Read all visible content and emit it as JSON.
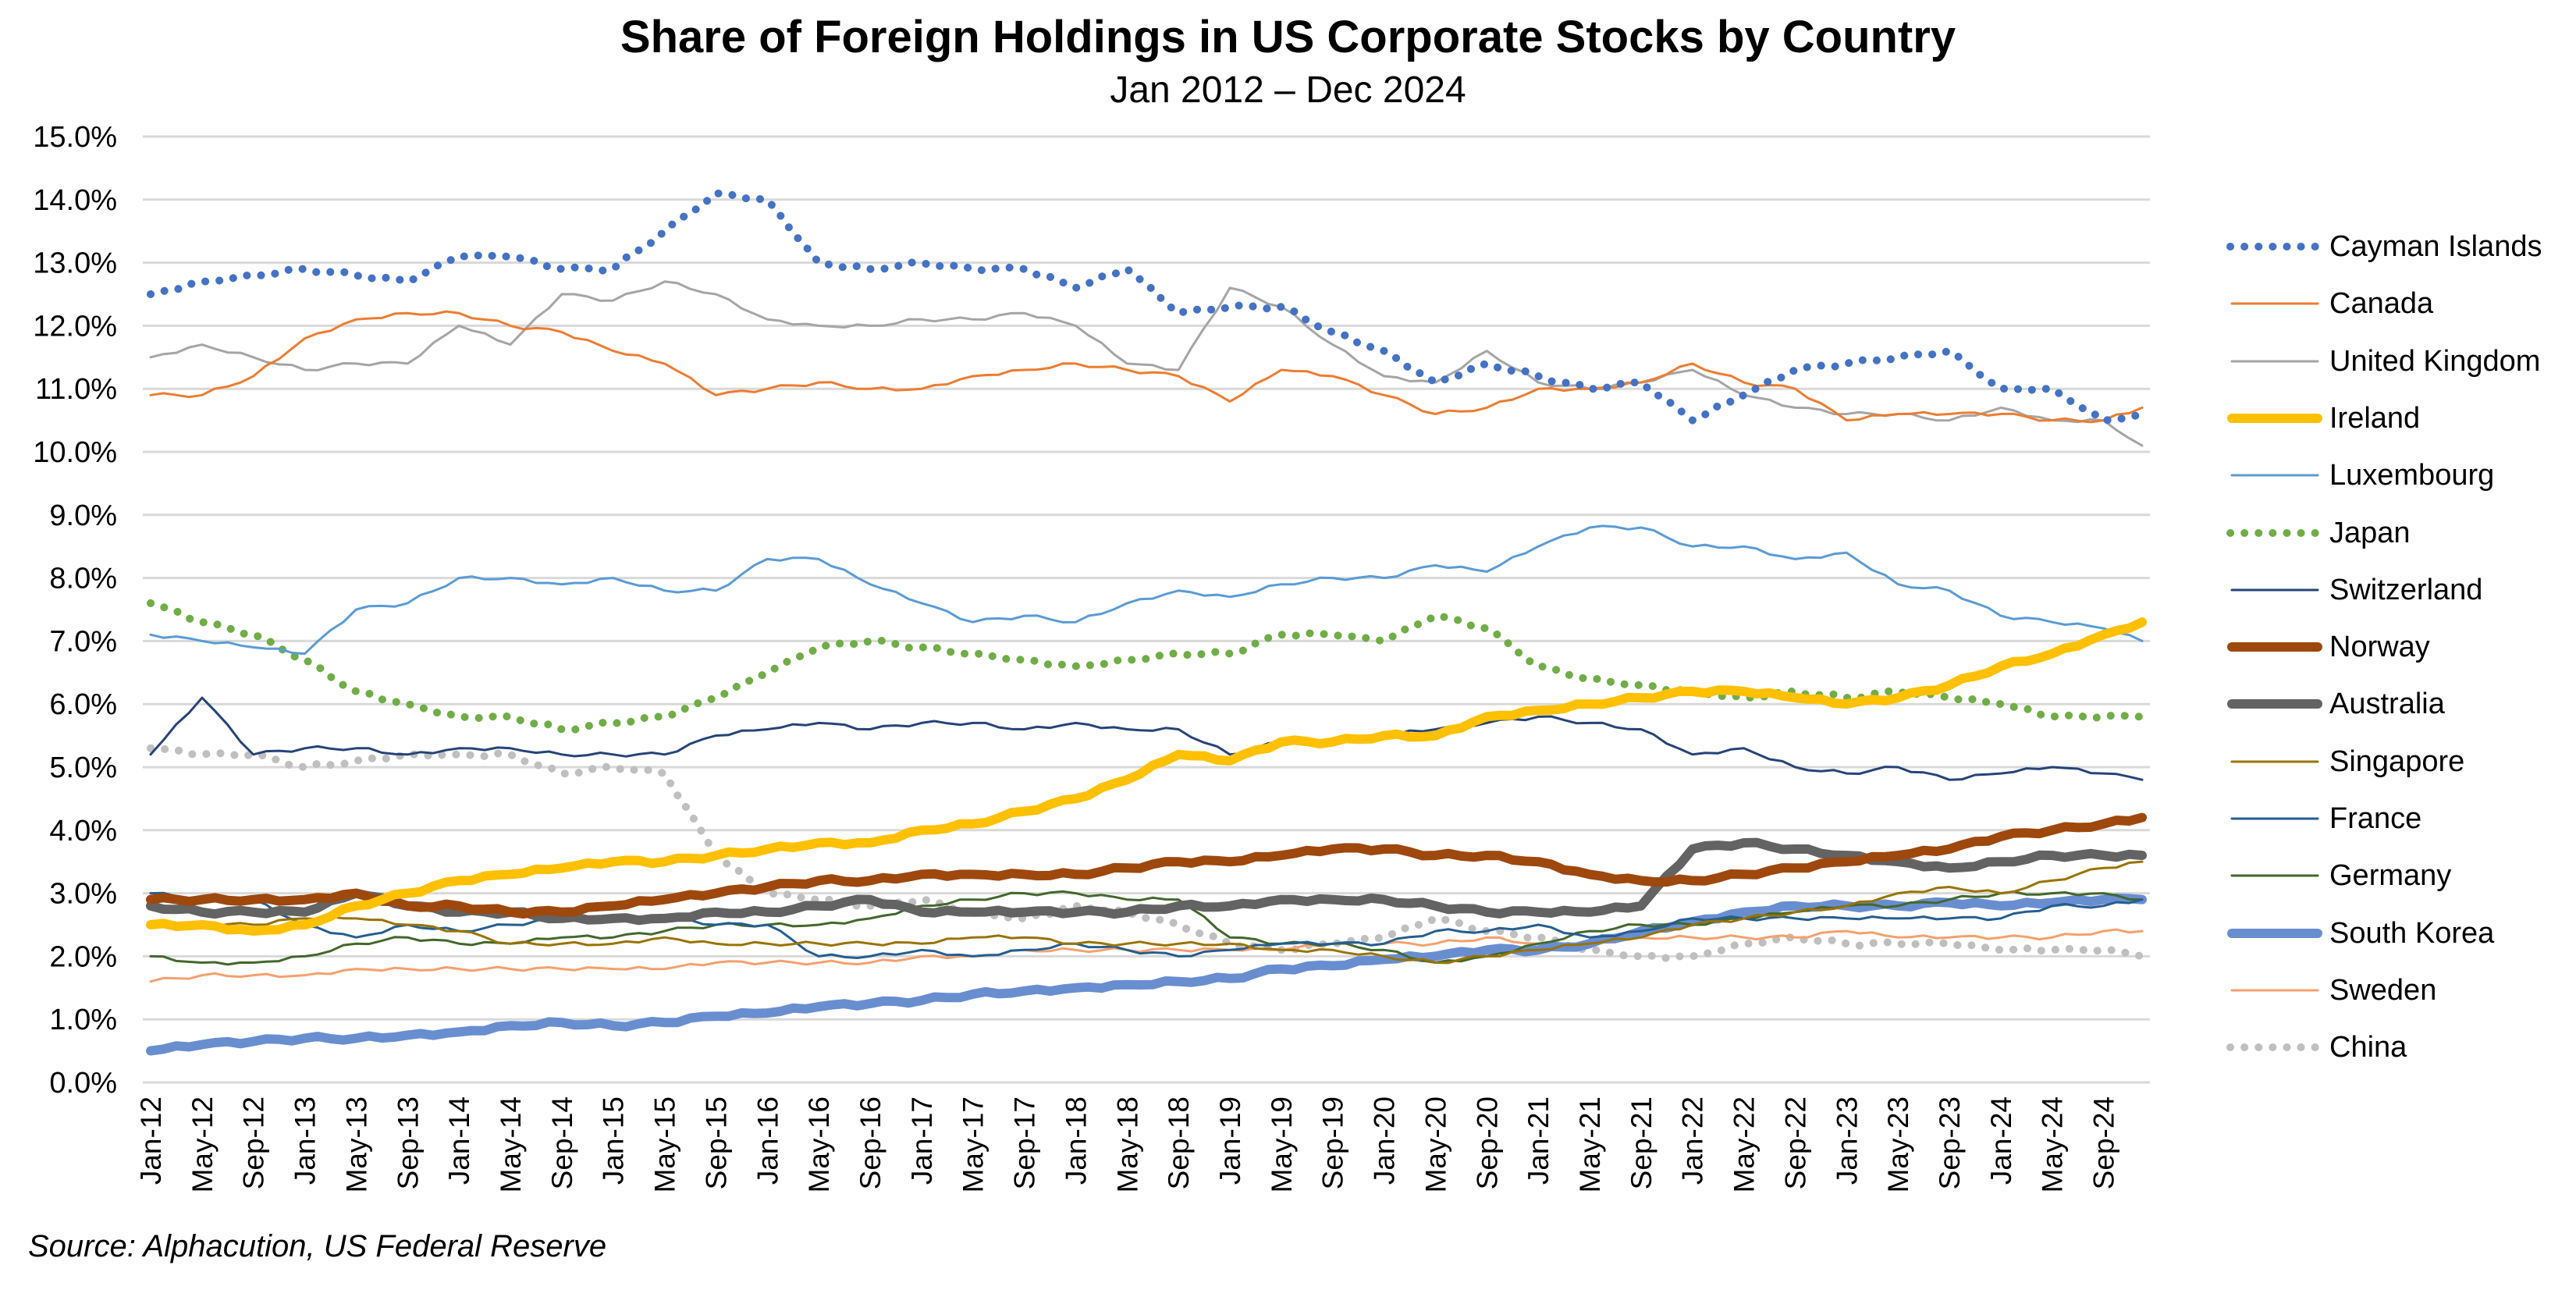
{
  "chart_data": {
    "type": "line",
    "title": "Share of Foreign Holdings in US Corporate Stocks by Country",
    "subtitle": "Jan 2012 – Dec 2024",
    "source": "Source: Alphacution, US Federal Reserve",
    "xlabel": "",
    "ylabel": "",
    "ylim": [
      0,
      15
    ],
    "yticks": [
      "0.0%",
      "1.0%",
      "2.0%",
      "3.0%",
      "4.0%",
      "5.0%",
      "6.0%",
      "7.0%",
      "8.0%",
      "9.0%",
      "10.0%",
      "11.0%",
      "12.0%",
      "13.0%",
      "14.0%",
      "15.0%"
    ],
    "grid": true,
    "legend_position": "right",
    "x": [
      "Jan-12",
      "May-12",
      "Sep-12",
      "Jan-13",
      "May-13",
      "Sep-13",
      "Jan-14",
      "May-14",
      "Sep-14",
      "Jan-15",
      "May-15",
      "Sep-15",
      "Jan-16",
      "May-16",
      "Sep-16",
      "Jan-17",
      "May-17",
      "Sep-17",
      "Jan-18",
      "May-18",
      "Sep-18",
      "Jan-19",
      "May-19",
      "Sep-19",
      "Jan-20",
      "May-20",
      "Sep-20",
      "Jan-21",
      "May-21",
      "Sep-21",
      "Jan-22",
      "May-22",
      "Sep-22",
      "Jan-23",
      "May-23",
      "Sep-23",
      "Jan-24",
      "May-24",
      "Sep-24",
      "Dec-24"
    ],
    "xticks": [
      "Jan-12",
      "May-12",
      "Sep-12",
      "Jan-13",
      "May-13",
      "Sep-13",
      "Jan-14",
      "May-14",
      "Sep-14",
      "Jan-15",
      "May-15",
      "Sep-15",
      "Jan-16",
      "May-16",
      "Sep-16",
      "Jan-17",
      "May-17",
      "Sep-17",
      "Jan-18",
      "May-18",
      "Sep-18",
      "Jan-19",
      "May-19",
      "Sep-19",
      "Jan-20",
      "May-20",
      "Sep-20",
      "Jan-21",
      "May-21",
      "Sep-21",
      "Jan-22",
      "May-22",
      "Sep-22",
      "Jan-23",
      "May-23",
      "Sep-23",
      "Jan-24",
      "May-24",
      "Sep-24"
    ],
    "series": [
      {
        "name": "Cayman Islands",
        "color": "#4472C4",
        "style": "dotted",
        "weight": "medium",
        "values": [
          12.5,
          12.7,
          12.8,
          12.9,
          12.8,
          12.7,
          13.1,
          13.1,
          12.9,
          12.9,
          13.5,
          14.1,
          14.0,
          13.0,
          12.9,
          13.0,
          12.9,
          12.9,
          12.6,
          12.9,
          12.2,
          12.3,
          12.3,
          11.9,
          11.6,
          11.1,
          11.4,
          11.2,
          11.0,
          11.1,
          10.5,
          10.9,
          11.3,
          11.4,
          11.5,
          11.6,
          11.0,
          11.0,
          10.5,
          10.6
        ]
      },
      {
        "name": "Canada",
        "color": "#ED7D31",
        "style": "solid",
        "weight": "thin",
        "values": [
          10.9,
          10.9,
          11.2,
          11.8,
          12.1,
          12.2,
          12.2,
          12.0,
          11.9,
          11.6,
          11.4,
          10.9,
          11.0,
          11.1,
          11.0,
          11.0,
          11.2,
          11.3,
          11.4,
          11.3,
          11.2,
          10.8,
          11.3,
          11.2,
          10.9,
          10.6,
          10.7,
          11.0,
          11.0,
          11.1,
          11.4,
          11.1,
          11.0,
          10.5,
          10.6,
          10.6,
          10.6,
          10.5,
          10.5,
          10.7
        ]
      },
      {
        "name": "United Kingdom",
        "color": "#A5A5A5",
        "style": "solid",
        "weight": "thin",
        "values": [
          11.5,
          11.7,
          11.5,
          11.3,
          11.4,
          11.4,
          12.0,
          11.7,
          12.5,
          12.4,
          12.7,
          12.5,
          12.1,
          12.0,
          12.0,
          12.1,
          12.1,
          12.2,
          12.0,
          11.4,
          11.3,
          12.6,
          12.3,
          11.7,
          11.2,
          11.1,
          11.6,
          11.1,
          11.0,
          11.1,
          11.3,
          10.9,
          10.7,
          10.6,
          10.6,
          10.5,
          10.7,
          10.5,
          10.5,
          10.1
        ]
      },
      {
        "name": "Ireland",
        "color": "#FFC000",
        "style": "solid",
        "weight": "thick",
        "values": [
          2.5,
          2.5,
          2.4,
          2.5,
          2.8,
          3.0,
          3.2,
          3.3,
          3.4,
          3.5,
          3.5,
          3.6,
          3.7,
          3.8,
          3.8,
          4.0,
          4.1,
          4.3,
          4.5,
          4.8,
          5.2,
          5.1,
          5.4,
          5.4,
          5.5,
          5.5,
          5.8,
          5.9,
          6.0,
          6.1,
          6.2,
          6.2,
          6.1,
          6.0,
          6.1,
          6.3,
          6.6,
          6.8,
          7.1,
          7.3
        ]
      },
      {
        "name": "Luxembourg",
        "color": "#5B9BD5",
        "style": "solid",
        "weight": "thin",
        "values": [
          7.1,
          7.0,
          6.9,
          6.8,
          7.5,
          7.6,
          8.0,
          8.0,
          7.9,
          8.0,
          7.8,
          7.8,
          8.3,
          8.3,
          7.9,
          7.6,
          7.3,
          7.4,
          7.3,
          7.6,
          7.8,
          7.7,
          7.9,
          8.0,
          8.0,
          8.2,
          8.1,
          8.5,
          8.8,
          8.8,
          8.5,
          8.5,
          8.3,
          8.4,
          7.9,
          7.8,
          7.4,
          7.3,
          7.2,
          7.0
        ]
      },
      {
        "name": "Japan",
        "color": "#70AD47",
        "style": "dotted",
        "weight": "medium",
        "values": [
          7.6,
          7.3,
          7.1,
          6.7,
          6.2,
          6.0,
          5.8,
          5.8,
          5.6,
          5.7,
          5.8,
          6.1,
          6.5,
          6.9,
          7.0,
          6.9,
          6.8,
          6.7,
          6.6,
          6.7,
          6.8,
          6.8,
          7.1,
          7.1,
          7.0,
          7.4,
          7.2,
          6.6,
          6.4,
          6.3,
          6.2,
          6.1,
          6.2,
          6.1,
          6.2,
          6.1,
          6.0,
          5.8,
          5.8,
          5.8
        ]
      },
      {
        "name": "Switzerland",
        "color": "#264478",
        "style": "solid",
        "weight": "thin",
        "values": [
          5.2,
          6.1,
          5.2,
          5.3,
          5.3,
          5.2,
          5.3,
          5.3,
          5.2,
          5.2,
          5.2,
          5.5,
          5.6,
          5.7,
          5.6,
          5.7,
          5.7,
          5.6,
          5.7,
          5.6,
          5.6,
          5.2,
          5.4,
          5.4,
          5.5,
          5.6,
          5.7,
          5.8,
          5.7,
          5.6,
          5.2,
          5.3,
          5.0,
          4.9,
          5.0,
          4.8,
          4.9,
          5.0,
          4.9,
          4.8
        ]
      },
      {
        "name": "Norway",
        "color": "#9E480E",
        "style": "solid",
        "weight": "thick",
        "values": [
          2.9,
          2.9,
          2.9,
          2.9,
          3.0,
          2.8,
          2.8,
          2.7,
          2.7,
          2.8,
          2.9,
          3.0,
          3.1,
          3.2,
          3.2,
          3.3,
          3.3,
          3.3,
          3.3,
          3.4,
          3.5,
          3.5,
          3.6,
          3.7,
          3.7,
          3.6,
          3.6,
          3.5,
          3.3,
          3.2,
          3.2,
          3.3,
          3.4,
          3.5,
          3.6,
          3.7,
          3.9,
          4.0,
          4.1,
          4.2
        ]
      },
      {
        "name": "Australia",
        "color": "#636363",
        "style": "solid",
        "weight": "thick",
        "values": [
          2.8,
          2.7,
          2.7,
          2.7,
          3.0,
          2.8,
          2.7,
          2.7,
          2.6,
          2.6,
          2.6,
          2.7,
          2.7,
          2.8,
          2.9,
          2.7,
          2.7,
          2.7,
          2.7,
          2.7,
          2.8,
          2.8,
          2.9,
          2.9,
          2.9,
          2.8,
          2.7,
          2.7,
          2.7,
          2.8,
          3.7,
          3.8,
          3.7,
          3.6,
          3.5,
          3.4,
          3.5,
          3.6,
          3.6,
          3.6
        ]
      },
      {
        "name": "Singapore",
        "color": "#997300",
        "style": "solid",
        "weight": "thin",
        "values": [
          2.5,
          2.5,
          2.5,
          2.6,
          2.6,
          2.5,
          2.4,
          2.2,
          2.2,
          2.2,
          2.3,
          2.2,
          2.2,
          2.2,
          2.2,
          2.2,
          2.3,
          2.3,
          2.2,
          2.2,
          2.2,
          2.2,
          2.1,
          2.1,
          2.0,
          1.9,
          2.0,
          2.1,
          2.2,
          2.3,
          2.5,
          2.6,
          2.7,
          2.8,
          3.0,
          3.1,
          3.0,
          3.2,
          3.4,
          3.5
        ]
      },
      {
        "name": "France",
        "color": "#255E91",
        "style": "solid",
        "weight": "thin",
        "values": [
          3.0,
          2.9,
          2.9,
          2.5,
          2.3,
          2.5,
          2.4,
          2.5,
          2.6,
          2.6,
          2.6,
          2.5,
          2.5,
          2.0,
          2.0,
          2.1,
          2.0,
          2.1,
          2.2,
          2.1,
          2.0,
          2.1,
          2.2,
          2.2,
          2.2,
          2.4,
          2.4,
          2.5,
          2.3,
          2.4,
          2.6,
          2.6,
          2.6,
          2.6,
          2.6,
          2.6,
          2.6,
          2.8,
          2.8,
          2.9
        ]
      },
      {
        "name": "Germany",
        "color": "#43682B",
        "style": "solid",
        "weight": "thin",
        "values": [
          2.0,
          1.9,
          1.9,
          2.0,
          2.2,
          2.3,
          2.2,
          2.2,
          2.3,
          2.3,
          2.4,
          2.5,
          2.5,
          2.5,
          2.6,
          2.8,
          2.9,
          3.0,
          3.0,
          2.9,
          2.9,
          2.3,
          2.2,
          2.2,
          2.1,
          1.9,
          2.0,
          2.2,
          2.4,
          2.5,
          2.5,
          2.6,
          2.7,
          2.8,
          2.8,
          2.9,
          3.0,
          3.0,
          3.0,
          2.9
        ]
      },
      {
        "name": "South Korea",
        "color": "#698ED0",
        "style": "solid",
        "weight": "thick",
        "values": [
          0.5,
          0.6,
          0.65,
          0.7,
          0.7,
          0.75,
          0.8,
          0.9,
          0.95,
          0.9,
          0.95,
          1.05,
          1.1,
          1.2,
          1.25,
          1.3,
          1.4,
          1.45,
          1.5,
          1.55,
          1.6,
          1.65,
          1.8,
          1.85,
          1.95,
          2.0,
          2.1,
          2.1,
          2.2,
          2.4,
          2.55,
          2.7,
          2.8,
          2.8,
          2.8,
          2.85,
          2.8,
          2.85,
          2.9,
          2.9
        ]
      },
      {
        "name": "Sweden",
        "color": "#F4A16E",
        "style": "solid",
        "weight": "thin",
        "values": [
          1.6,
          1.7,
          1.7,
          1.7,
          1.8,
          1.8,
          1.8,
          1.8,
          1.8,
          1.8,
          1.8,
          1.9,
          1.9,
          1.9,
          1.9,
          2.0,
          2.0,
          2.1,
          2.1,
          2.1,
          2.1,
          2.1,
          2.1,
          2.2,
          2.2,
          2.2,
          2.3,
          2.2,
          2.2,
          2.3,
          2.3,
          2.3,
          2.3,
          2.4,
          2.3,
          2.3,
          2.3,
          2.3,
          2.4,
          2.4
        ]
      },
      {
        "name": "China",
        "color": "#BFBFBF",
        "style": "dotted",
        "weight": "medium",
        "values": [
          5.3,
          5.2,
          5.2,
          5.0,
          5.1,
          5.2,
          5.2,
          5.2,
          4.9,
          5.0,
          4.9,
          3.6,
          3.0,
          2.9,
          2.8,
          2.9,
          2.7,
          2.6,
          2.8,
          2.7,
          2.5,
          2.2,
          2.1,
          2.2,
          2.3,
          2.6,
          2.4,
          2.3,
          2.1,
          2.0,
          2.0,
          2.2,
          2.3,
          2.2,
          2.2,
          2.2,
          2.1,
          2.1,
          2.1,
          2.0
        ]
      }
    ]
  }
}
